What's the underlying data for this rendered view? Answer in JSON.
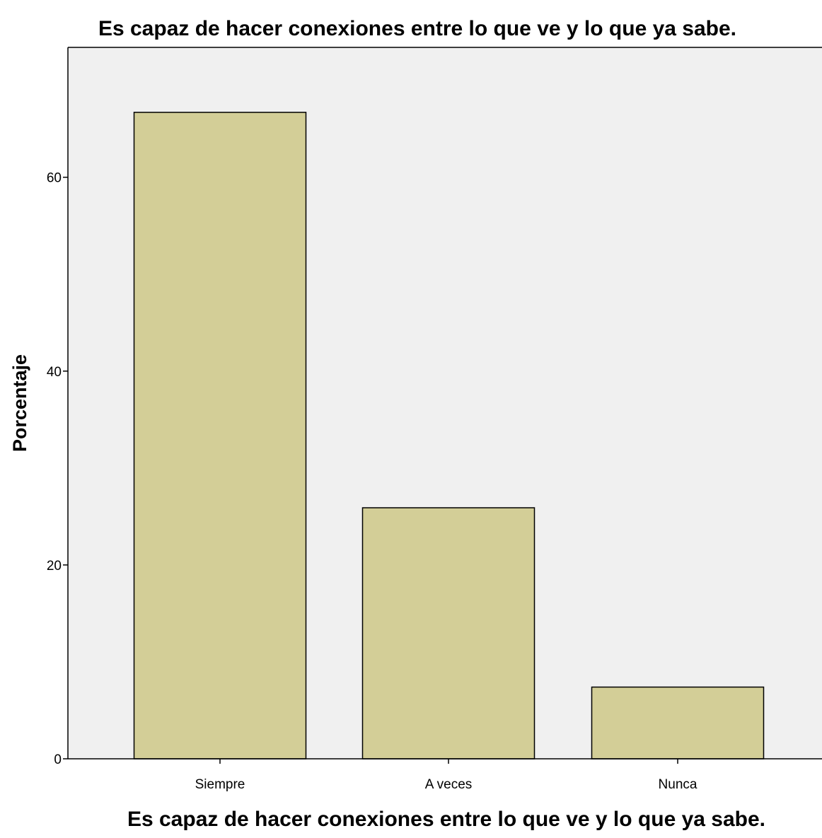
{
  "colors": {
    "plot_background": "#f0f0f0",
    "bar_fill": "#d3ce97",
    "bar_stroke": "#000000",
    "axis": "#000000"
  },
  "chart_data": {
    "type": "bar",
    "title": "Es capaz de hacer conexiones entre lo que ve y lo que ya sabe.",
    "xlabel": "Es capaz de hacer conexiones entre lo que ve y lo que ya sabe.",
    "ylabel": "Porcentaje",
    "categories": [
      "Siempre",
      "A veces",
      "Nunca"
    ],
    "values": [
      66.7,
      25.9,
      7.4
    ],
    "ylim": [
      0,
      73.4
    ],
    "yticks": [
      0,
      20,
      40,
      60
    ],
    "grid": false,
    "legend": "none"
  }
}
